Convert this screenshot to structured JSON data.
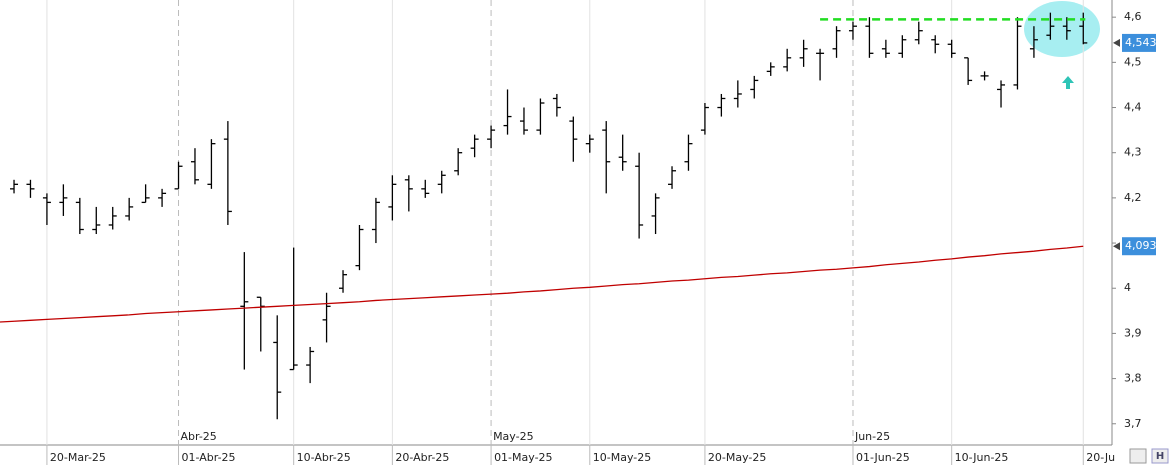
{
  "chart_data": {
    "type": "ohlc",
    "categories": [
      null,
      null,
      "20-Mar-25",
      null,
      null,
      null,
      null,
      null,
      null,
      null,
      "01-Abr-25",
      null,
      null,
      null,
      null,
      null,
      null,
      "10-Abr-25",
      null,
      null,
      null,
      null,
      null,
      "20-Abr-25",
      null,
      null,
      null,
      null,
      null,
      "01-May-25",
      null,
      null,
      null,
      null,
      null,
      "10-May-25",
      null,
      null,
      null,
      null,
      null,
      null,
      "20-May-25",
      null,
      null,
      null,
      null,
      null,
      null,
      null,
      null,
      "01-Jun-25",
      null,
      null,
      null,
      null,
      null,
      "10-Jun-25",
      null,
      null,
      null,
      null,
      null,
      null,
      null,
      "20-Ju"
    ],
    "month_labels": [
      "Abr-25",
      "May-25",
      "Jun-25"
    ],
    "series": [
      {
        "color": "#000000",
        "open": [
          4.22,
          4.23,
          4.2,
          4.19,
          4.19,
          4.13,
          4.14,
          4.16,
          4.19,
          4.2,
          4.22,
          4.28,
          4.23,
          4.33,
          3.96,
          3.98,
          3.88,
          3.82,
          3.83,
          3.93,
          4.0,
          4.05,
          4.13,
          4.18,
          4.24,
          4.22,
          4.23,
          4.26,
          4.31,
          4.33,
          4.36,
          4.37,
          4.35,
          4.42,
          4.37,
          4.32,
          4.35,
          4.29,
          4.27,
          4.16,
          4.23,
          4.28,
          4.35,
          4.4,
          4.42,
          4.44,
          4.48,
          4.49,
          4.51,
          4.52,
          4.53,
          4.57,
          4.58,
          4.53,
          4.52,
          4.55,
          4.55,
          4.54,
          4.51,
          4.47,
          4.44,
          4.45,
          4.53,
          4.56,
          4.58,
          4.58
        ],
        "high": [
          4.24,
          4.24,
          4.21,
          4.23,
          4.2,
          4.18,
          4.18,
          4.2,
          4.23,
          4.22,
          4.28,
          4.31,
          4.33,
          4.37,
          4.08,
          3.98,
          3.94,
          4.09,
          3.87,
          3.99,
          4.04,
          4.14,
          4.2,
          4.25,
          4.25,
          4.24,
          4.26,
          4.31,
          4.34,
          4.36,
          4.44,
          4.4,
          4.42,
          4.43,
          4.38,
          4.34,
          4.37,
          4.34,
          4.3,
          4.21,
          4.27,
          4.34,
          4.41,
          4.43,
          4.46,
          4.47,
          4.5,
          4.53,
          4.55,
          4.53,
          4.58,
          4.59,
          4.6,
          4.55,
          4.56,
          4.59,
          4.56,
          4.55,
          4.51,
          4.48,
          4.46,
          4.6,
          4.58,
          4.61,
          4.6,
          4.61
        ],
        "low": [
          4.21,
          4.2,
          4.14,
          4.16,
          4.12,
          4.12,
          4.13,
          4.15,
          4.19,
          4.18,
          4.22,
          4.23,
          4.22,
          4.14,
          3.82,
          3.86,
          3.71,
          3.82,
          3.79,
          3.88,
          3.99,
          4.04,
          4.1,
          4.15,
          4.17,
          4.2,
          4.21,
          4.25,
          4.29,
          4.31,
          4.34,
          4.34,
          4.34,
          4.38,
          4.28,
          4.3,
          4.21,
          4.26,
          4.11,
          4.12,
          4.22,
          4.26,
          4.34,
          4.38,
          4.4,
          4.42,
          4.47,
          4.48,
          4.49,
          4.46,
          4.51,
          4.55,
          4.51,
          4.51,
          4.51,
          4.54,
          4.52,
          4.51,
          4.45,
          4.46,
          4.4,
          4.44,
          4.51,
          4.55,
          4.55,
          4.54
        ],
        "close": [
          4.23,
          4.22,
          4.19,
          4.2,
          4.13,
          4.14,
          4.16,
          4.18,
          4.2,
          4.21,
          4.27,
          4.24,
          4.32,
          4.17,
          3.97,
          3.96,
          3.77,
          3.83,
          3.86,
          3.96,
          4.03,
          4.13,
          4.19,
          4.23,
          4.22,
          4.21,
          4.25,
          4.3,
          4.33,
          4.35,
          4.38,
          4.35,
          4.41,
          4.4,
          4.33,
          4.33,
          4.28,
          4.28,
          4.14,
          4.2,
          4.26,
          4.32,
          4.4,
          4.42,
          4.43,
          4.46,
          4.49,
          4.51,
          4.53,
          4.52,
          4.57,
          4.58,
          4.52,
          4.52,
          4.55,
          4.57,
          4.54,
          4.52,
          4.46,
          4.47,
          4.45,
          4.58,
          4.55,
          4.58,
          4.57,
          4.543
        ]
      },
      {
        "color": "#c00000",
        "values": [
          3.927,
          3.929,
          3.931,
          3.933,
          3.935,
          3.937,
          3.939,
          3.941,
          3.944,
          3.946,
          3.948,
          3.95,
          3.952,
          3.954,
          3.956,
          3.958,
          3.96,
          3.962,
          3.964,
          3.966,
          3.968,
          3.97,
          3.973,
          3.975,
          3.977,
          3.979,
          3.981,
          3.983,
          3.985,
          3.987,
          3.989,
          3.992,
          3.994,
          3.997,
          4.0,
          4.002,
          4.005,
          4.008,
          4.01,
          4.013,
          4.016,
          4.018,
          4.021,
          4.024,
          4.026,
          4.029,
          4.032,
          4.034,
          4.037,
          4.04,
          4.042,
          4.045,
          4.048,
          4.052,
          4.055,
          4.058,
          4.062,
          4.065,
          4.069,
          4.072,
          4.076,
          4.079,
          4.082,
          4.086,
          4.089,
          4.093
        ]
      }
    ],
    "price_tags": [
      {
        "value": 4.543,
        "label": "4,543"
      },
      {
        "value": 4.093,
        "label": "4,093"
      }
    ],
    "tag_color": "#3c8fdc",
    "resistance": {
      "value": 4.595,
      "from": 49,
      "to": 65,
      "color": "#22dd22"
    },
    "ylim": [
      3.653,
      4.638
    ],
    "yticks": [
      {
        "value": 3.7,
        "label": "3,7"
      },
      {
        "value": 3.8,
        "label": "3,8"
      },
      {
        "value": 3.9,
        "label": "3,9"
      },
      4,
      {
        "value": 4.1,
        "label": "4,1"
      },
      {
        "value": 4.2,
        "label": "4,2"
      },
      {
        "value": 4.3,
        "label": "4,3"
      },
      {
        "value": 4.4,
        "label": "4,4"
      },
      {
        "value": 4.5,
        "label": "4,5"
      },
      {
        "value": 4.6,
        "label": "4,6"
      }
    ],
    "grid": true
  }
}
